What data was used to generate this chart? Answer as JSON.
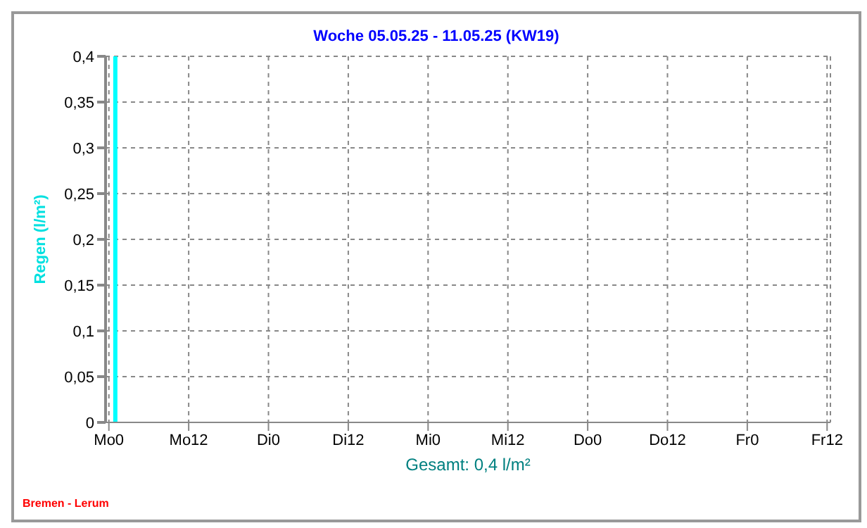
{
  "chart_data": {
    "type": "bar",
    "title": "Woche 05.05.25 - 11.05.25 (KW19)",
    "xlabel": "Gesamt: 0,4 l/m²",
    "ylabel": "Regen  (l/m²)",
    "categories": [
      "Mo0",
      null,
      null,
      null,
      null,
      null,
      null,
      null,
      null,
      null,
      null,
      null,
      "Mo12",
      null,
      null,
      null,
      null,
      null,
      null,
      null,
      null,
      null,
      null,
      null,
      "Di0",
      null,
      null,
      null,
      null,
      null,
      null,
      null,
      null,
      null,
      null,
      null,
      "Di12",
      null,
      null,
      null,
      null,
      null,
      null,
      null,
      null,
      null,
      null,
      null,
      "Mi0",
      null,
      null,
      null,
      null,
      null,
      null,
      null,
      null,
      null,
      null,
      null,
      "Mi12",
      null,
      null,
      null,
      null,
      null,
      null,
      null,
      null,
      null,
      null,
      null,
      "Do0",
      null,
      null,
      null,
      null,
      null,
      null,
      null,
      null,
      null,
      null,
      null,
      "Do12",
      null,
      null,
      null,
      null,
      null,
      null,
      null,
      null,
      null,
      null,
      null,
      "Fr0",
      null,
      null,
      null,
      null,
      null,
      null,
      null,
      null,
      null,
      null,
      null,
      "Fr12"
    ],
    "values": [
      0,
      0.4,
      0,
      0,
      0,
      0,
      0,
      0,
      0,
      0,
      0,
      0,
      0,
      0,
      0,
      0,
      0,
      0,
      0,
      0,
      0,
      0,
      0,
      0,
      0,
      0,
      0,
      0,
      0,
      0,
      0,
      0,
      0,
      0,
      0,
      0,
      0,
      0,
      0,
      0,
      0,
      0,
      0,
      0,
      0,
      0,
      0,
      0,
      0,
      0,
      0,
      0,
      0,
      0,
      0,
      0,
      0,
      0,
      0,
      0,
      0,
      0,
      0,
      0,
      0,
      0,
      0,
      0,
      0,
      0,
      0,
      0,
      0,
      0,
      0,
      0,
      0,
      0,
      0,
      0,
      0,
      0,
      0,
      0,
      0,
      0,
      0,
      0,
      0,
      0,
      0,
      0,
      0,
      0,
      0,
      0,
      0,
      0,
      0,
      0,
      0,
      0,
      0,
      0,
      0,
      0,
      0,
      0,
      0
    ],
    "color": "#00ffff",
    "ylim": [
      0,
      0.4
    ],
    "yticks": [
      {
        "value": 0,
        "label": "0"
      },
      {
        "value": 0.05,
        "label": "0,05"
      },
      {
        "value": 0.1,
        "label": "0,1"
      },
      {
        "value": 0.15,
        "label": "0,15"
      },
      {
        "value": 0.2,
        "label": "0,2"
      },
      {
        "value": 0.25,
        "label": "0,25"
      },
      {
        "value": 0.3,
        "label": "0,3"
      },
      {
        "value": 0.35,
        "label": "0,35"
      },
      {
        "value": 0.4,
        "label": "0,4"
      }
    ],
    "grid": true,
    "annotations": [
      "Bremen - Lerum"
    ]
  }
}
